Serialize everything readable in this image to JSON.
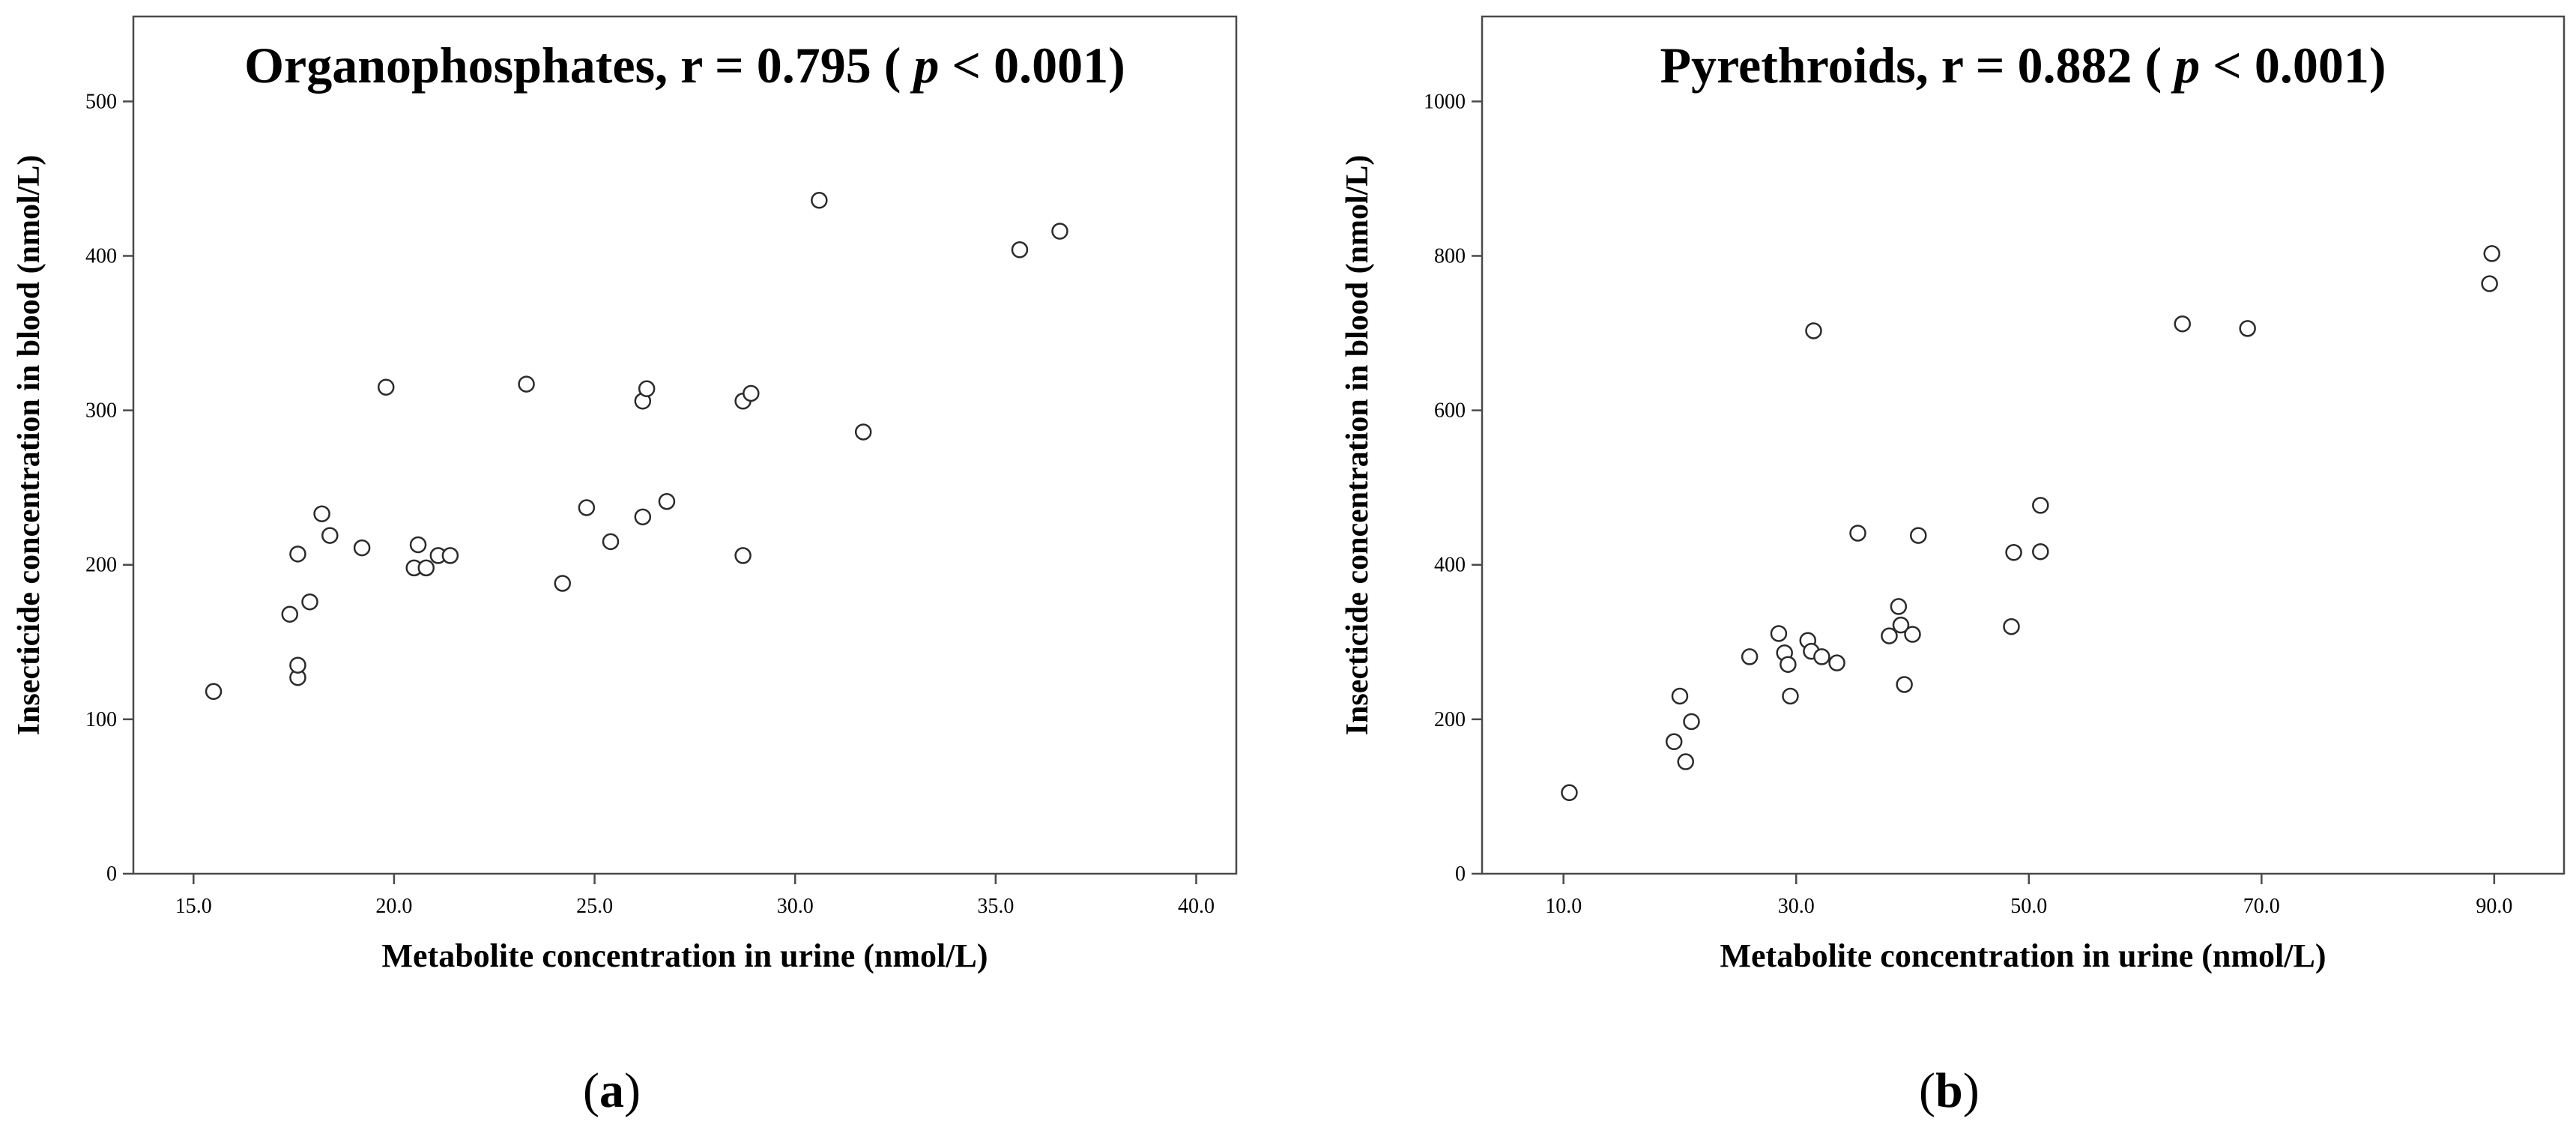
{
  "chart_data": [
    {
      "type": "scatter",
      "panel_label": "a",
      "title_text": "Organophosphates, r = 0.795 (",
      "title_p": "p",
      "title_tail": " < 0.001)",
      "xlabel": "Metabolite concentration in urine (nmol/L)",
      "ylabel": "Insecticide concentration in blood (nmol/L)",
      "xlim": [
        13.5,
        41.0
      ],
      "ylim": [
        0,
        555
      ],
      "xticks": [
        15.0,
        20.0,
        25.0,
        30.0,
        35.0,
        40.0
      ],
      "xtick_labels": [
        "15.0",
        "20.0",
        "25.0",
        "30.0",
        "35.0",
        "40.0"
      ],
      "yticks": [
        0,
        100,
        200,
        300,
        400,
        500
      ],
      "ytick_labels": [
        "0",
        "100",
        "200",
        "300",
        "400",
        "500"
      ],
      "grid": false,
      "legend": "none",
      "x": [
        15.5,
        17.4,
        17.6,
        17.6,
        17.6,
        17.9,
        18.2,
        18.4,
        19.2,
        19.8,
        20.5,
        20.6,
        20.8,
        21.1,
        21.4,
        23.3,
        24.2,
        24.8,
        25.4,
        26.2,
        26.2,
        26.3,
        26.8,
        28.7,
        28.7,
        28.9,
        30.6,
        31.7,
        35.6,
        36.6
      ],
      "y": [
        118,
        168,
        127,
        135,
        207,
        176,
        233,
        219,
        211,
        315,
        198,
        213,
        198,
        206,
        206,
        317,
        188,
        237,
        215,
        306,
        231,
        314,
        241,
        206,
        306,
        311,
        436,
        286,
        404,
        416
      ]
    },
    {
      "type": "scatter",
      "panel_label": "b",
      "title_text": "Pyrethroids, r = 0.882 (",
      "title_p": "p",
      "title_tail": " < 0.001)",
      "xlabel": "Metabolite concentration in urine (nmol/L)",
      "ylabel": "Insecticide concentration in blood (nmol/L)",
      "xlim": [
        3.0,
        96.0
      ],
      "ylim": [
        0,
        1110
      ],
      "xticks": [
        10.0,
        30.0,
        50.0,
        70.0,
        90.0
      ],
      "xtick_labels": [
        "10.0",
        "30.0",
        "50.0",
        "70.0",
        "90.0"
      ],
      "yticks": [
        0,
        200,
        400,
        600,
        800,
        1000
      ],
      "ytick_labels": [
        "0",
        "200",
        "400",
        "600",
        "800",
        "1000"
      ],
      "grid": false,
      "legend": "none",
      "x": [
        10.5,
        19.5,
        20.0,
        20.5,
        21.0,
        26.0,
        28.5,
        29.0,
        29.3,
        29.5,
        31.0,
        31.3,
        31.5,
        32.2,
        33.5,
        35.3,
        38.0,
        38.8,
        39.0,
        39.3,
        40.0,
        40.5,
        48.5,
        48.7,
        51.0,
        51.0,
        63.2,
        68.8,
        89.6,
        89.8
      ],
      "y": [
        105,
        171,
        230,
        145,
        197,
        281,
        311,
        286,
        271,
        230,
        302,
        288,
        703,
        281,
        273,
        441,
        308,
        346,
        322,
        245,
        310,
        438,
        320,
        416,
        477,
        417,
        712,
        706,
        764,
        803
      ]
    }
  ]
}
